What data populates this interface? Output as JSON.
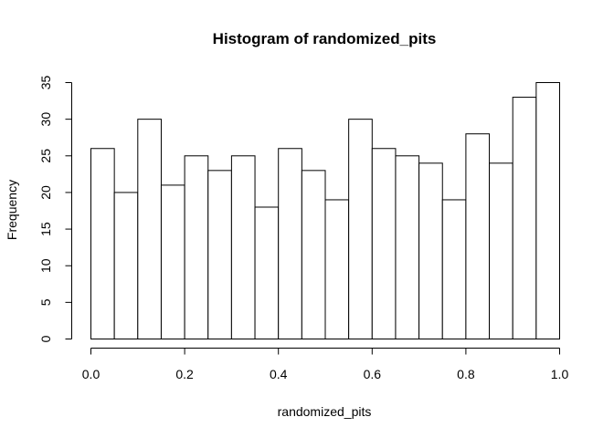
{
  "chart_data": {
    "type": "bar",
    "title": "Histogram of randomized_pits",
    "xlabel": "randomized_pits",
    "ylabel": "Frequency",
    "bins": [
      [
        0.0,
        0.05
      ],
      [
        0.05,
        0.1
      ],
      [
        0.1,
        0.15
      ],
      [
        0.15,
        0.2
      ],
      [
        0.2,
        0.25
      ],
      [
        0.25,
        0.3
      ],
      [
        0.3,
        0.35
      ],
      [
        0.35,
        0.4
      ],
      [
        0.4,
        0.45
      ],
      [
        0.45,
        0.5
      ],
      [
        0.5,
        0.55
      ],
      [
        0.55,
        0.6
      ],
      [
        0.6,
        0.65
      ],
      [
        0.65,
        0.7
      ],
      [
        0.7,
        0.75
      ],
      [
        0.75,
        0.8
      ],
      [
        0.8,
        0.85
      ],
      [
        0.85,
        0.9
      ],
      [
        0.9,
        0.95
      ],
      [
        0.95,
        1.0
      ]
    ],
    "values": [
      26,
      20,
      30,
      21,
      25,
      23,
      25,
      18,
      26,
      23,
      19,
      30,
      26,
      25,
      24,
      19,
      28,
      24,
      33,
      35
    ],
    "xlim": [
      0,
      1
    ],
    "ylim": [
      0,
      35
    ],
    "x_ticks": [
      "0.0",
      "0.2",
      "0.4",
      "0.6",
      "0.8",
      "1.0"
    ],
    "y_ticks": [
      "0",
      "5",
      "10",
      "15",
      "20",
      "25",
      "30",
      "35"
    ],
    "grid": false,
    "bar_fill": "#ffffff",
    "bar_stroke": "#000000"
  }
}
